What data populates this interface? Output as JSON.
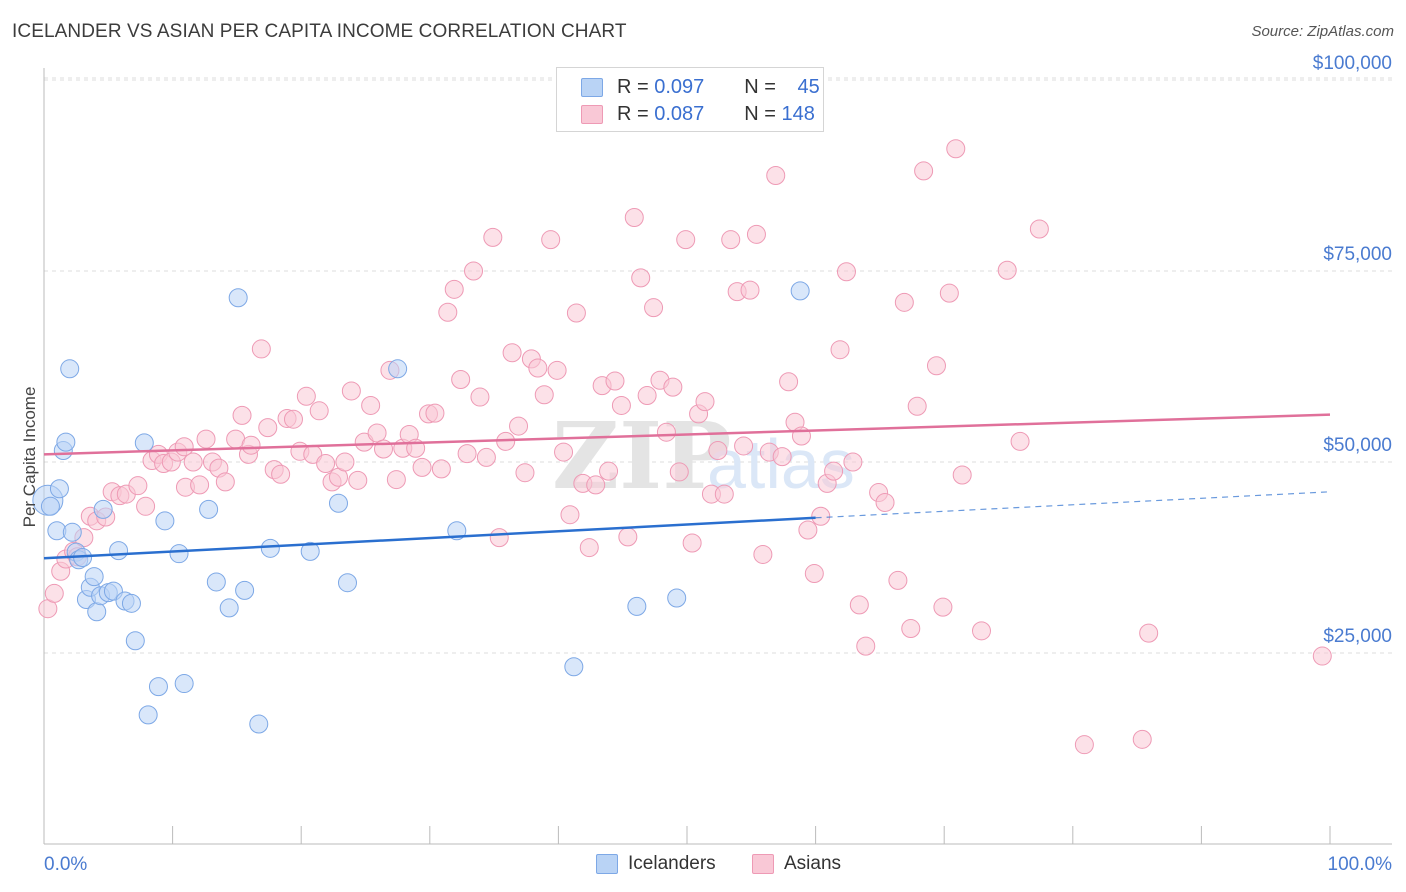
{
  "header": {
    "title": "ICELANDER VS ASIAN PER CAPITA INCOME CORRELATION CHART",
    "source": "Source: ZipAtlas.com"
  },
  "legend": {
    "rows": [
      {
        "r_label": "R = ",
        "r_value": "0.097",
        "n_label": "N = ",
        "n_value": "45"
      },
      {
        "r_label": "R = ",
        "r_value": "0.087",
        "n_label": "N = ",
        "n_value": "148"
      }
    ]
  },
  "bottom_legend": {
    "icelanders": "Icelanders",
    "asians": "Asians"
  },
  "watermark": {
    "zip": "ZIP",
    "atlas": "atlas"
  },
  "chart_data": {
    "type": "scatter",
    "ylabel": "Per Capita Income",
    "y_ticks": [
      {
        "value": 25000,
        "label": "$25,000"
      },
      {
        "value": 50000,
        "label": "$50,000"
      },
      {
        "value": 75000,
        "label": "$75,000"
      },
      {
        "value": 100000,
        "label": "$100,000"
      }
    ],
    "x_ticks": [
      {
        "value": 0,
        "label": "0.0%"
      },
      {
        "value": 100,
        "label": "100.0%"
      }
    ],
    "xlim": [
      0,
      100
    ],
    "ylim": [
      5000,
      105000
    ],
    "grid": true,
    "colors": {
      "icelanders_fill": "#b9d3f5",
      "icelanders_stroke": "#7da8e6",
      "icelanders_line": "#2a6fcf",
      "asians_fill": "#f9c8d6",
      "asians_stroke": "#ee9ab5",
      "asians_line": "#e0709a"
    },
    "series": [
      {
        "name": "Icelanders",
        "trend": {
          "x0": 0,
          "y0": 37400,
          "x1": 60,
          "y1": 42700,
          "dash_x1": 100,
          "dash_y1": 46100
        },
        "points": [
          [
            0.3,
            45000,
            2
          ],
          [
            0.5,
            44200,
            1
          ],
          [
            1.0,
            41000,
            1
          ],
          [
            1.2,
            46500,
            1
          ],
          [
            1.5,
            51500,
            1
          ],
          [
            1.7,
            52600,
            1
          ],
          [
            2.0,
            62200,
            1
          ],
          [
            2.2,
            40800,
            1
          ],
          [
            2.5,
            38200,
            1
          ],
          [
            2.7,
            37200,
            1
          ],
          [
            3.0,
            37500,
            1
          ],
          [
            3.3,
            32000,
            1
          ],
          [
            3.6,
            33600,
            1
          ],
          [
            3.9,
            35000,
            1
          ],
          [
            4.1,
            30400,
            1
          ],
          [
            4.4,
            32500,
            1
          ],
          [
            4.6,
            43800,
            1
          ],
          [
            5.0,
            32900,
            1
          ],
          [
            5.4,
            33100,
            1
          ],
          [
            5.8,
            38400,
            1
          ],
          [
            6.3,
            31800,
            1
          ],
          [
            6.8,
            31500,
            1
          ],
          [
            7.1,
            26600,
            1
          ],
          [
            7.8,
            52500,
            1
          ],
          [
            8.1,
            16900,
            1
          ],
          [
            8.9,
            20600,
            1
          ],
          [
            9.4,
            42300,
            1
          ],
          [
            10.5,
            38000,
            1
          ],
          [
            10.9,
            21000,
            1
          ],
          [
            12.8,
            43800,
            1
          ],
          [
            13.4,
            34300,
            1
          ],
          [
            14.4,
            30900,
            1
          ],
          [
            15.1,
            71500,
            1
          ],
          [
            15.6,
            33200,
            1
          ],
          [
            16.7,
            15700,
            1
          ],
          [
            17.6,
            38700,
            1
          ],
          [
            20.7,
            38300,
            1
          ],
          [
            22.9,
            44600,
            1
          ],
          [
            23.6,
            34200,
            1
          ],
          [
            27.5,
            62200,
            1
          ],
          [
            32.1,
            41000,
            1
          ],
          [
            41.2,
            23200,
            1
          ],
          [
            46.1,
            31100,
            1
          ],
          [
            49.2,
            32200,
            1
          ],
          [
            58.8,
            72400,
            1
          ]
        ]
      },
      {
        "name": "Asians",
        "trend": {
          "x0": 0,
          "y0": 51000,
          "x1": 100,
          "y1": 56200
        },
        "points": [
          [
            0.3,
            30800,
            1
          ],
          [
            0.8,
            32800,
            1
          ],
          [
            1.3,
            35700,
            1
          ],
          [
            1.7,
            37300,
            1
          ],
          [
            2.3,
            38300,
            1
          ],
          [
            2.6,
            37600,
            1
          ],
          [
            3.1,
            40100,
            1
          ],
          [
            3.6,
            42900,
            1
          ],
          [
            4.1,
            42300,
            1
          ],
          [
            4.8,
            42800,
            1
          ],
          [
            5.3,
            46100,
            1
          ],
          [
            5.9,
            45600,
            1
          ],
          [
            6.4,
            45800,
            1
          ],
          [
            7.3,
            46900,
            1
          ],
          [
            7.9,
            44200,
            1
          ],
          [
            8.4,
            50200,
            1
          ],
          [
            8.9,
            51000,
            1
          ],
          [
            9.3,
            49800,
            1
          ],
          [
            9.9,
            50000,
            1
          ],
          [
            10.4,
            51300,
            1
          ],
          [
            10.9,
            52000,
            1
          ],
          [
            11.0,
            46700,
            1
          ],
          [
            11.6,
            50000,
            1
          ],
          [
            12.1,
            47000,
            1
          ],
          [
            12.6,
            53000,
            1
          ],
          [
            13.1,
            50000,
            1
          ],
          [
            13.6,
            49200,
            1
          ],
          [
            14.1,
            47400,
            1
          ],
          [
            14.9,
            53000,
            1
          ],
          [
            15.4,
            56100,
            1
          ],
          [
            15.9,
            51000,
            1
          ],
          [
            16.1,
            52200,
            1
          ],
          [
            16.9,
            64800,
            1
          ],
          [
            17.4,
            54500,
            1
          ],
          [
            17.9,
            49000,
            1
          ],
          [
            18.4,
            48400,
            1
          ],
          [
            18.9,
            55700,
            1
          ],
          [
            19.4,
            55600,
            1
          ],
          [
            19.9,
            51400,
            1
          ],
          [
            20.4,
            58600,
            1
          ],
          [
            20.9,
            51000,
            1
          ],
          [
            21.4,
            56700,
            1
          ],
          [
            21.9,
            49800,
            1
          ],
          [
            22.4,
            47400,
            1
          ],
          [
            22.9,
            48000,
            1
          ],
          [
            23.4,
            50000,
            1
          ],
          [
            23.9,
            59300,
            1
          ],
          [
            24.4,
            47600,
            1
          ],
          [
            24.9,
            52600,
            1
          ],
          [
            25.4,
            57400,
            1
          ],
          [
            25.9,
            53800,
            1
          ],
          [
            26.4,
            51700,
            1
          ],
          [
            26.9,
            62000,
            1
          ],
          [
            27.4,
            47700,
            1
          ],
          [
            27.9,
            51800,
            1
          ],
          [
            28.4,
            53600,
            1
          ],
          [
            28.9,
            51800,
            1
          ],
          [
            29.4,
            49300,
            1
          ],
          [
            29.9,
            56300,
            1
          ],
          [
            30.4,
            56400,
            1
          ],
          [
            30.9,
            49100,
            1
          ],
          [
            31.4,
            69600,
            1
          ],
          [
            31.9,
            72600,
            1
          ],
          [
            32.4,
            60800,
            1
          ],
          [
            32.9,
            51100,
            1
          ],
          [
            33.4,
            75000,
            1
          ],
          [
            33.9,
            58500,
            1
          ],
          [
            34.4,
            50600,
            1
          ],
          [
            34.9,
            79400,
            1
          ],
          [
            35.4,
            40100,
            1
          ],
          [
            35.9,
            52700,
            1
          ],
          [
            36.4,
            64300,
            1
          ],
          [
            36.9,
            54700,
            1
          ],
          [
            37.4,
            48600,
            1
          ],
          [
            37.9,
            63500,
            1
          ],
          [
            38.4,
            62300,
            1
          ],
          [
            38.9,
            58800,
            1
          ],
          [
            39.4,
            79100,
            1
          ],
          [
            39.9,
            62000,
            1
          ],
          [
            40.4,
            51300,
            1
          ],
          [
            40.9,
            43100,
            1
          ],
          [
            41.4,
            69500,
            1
          ],
          [
            41.9,
            47200,
            1
          ],
          [
            42.4,
            38800,
            1
          ],
          [
            42.9,
            47000,
            1
          ],
          [
            43.4,
            60000,
            1
          ],
          [
            43.9,
            48800,
            1
          ],
          [
            44.4,
            60600,
            1
          ],
          [
            44.9,
            57400,
            1
          ],
          [
            45.4,
            40200,
            1
          ],
          [
            45.9,
            82000,
            1
          ],
          [
            46.4,
            74100,
            1
          ],
          [
            46.9,
            58700,
            1
          ],
          [
            47.4,
            70200,
            1
          ],
          [
            47.9,
            60700,
            1
          ],
          [
            48.4,
            53900,
            1
          ],
          [
            48.9,
            59800,
            1
          ],
          [
            49.4,
            48700,
            1
          ],
          [
            49.9,
            79100,
            1
          ],
          [
            50.4,
            39400,
            1
          ],
          [
            50.9,
            56300,
            1
          ],
          [
            51.4,
            57900,
            1
          ],
          [
            51.9,
            45800,
            1
          ],
          [
            52.4,
            51500,
            1
          ],
          [
            52.9,
            45800,
            1
          ],
          [
            53.4,
            79100,
            1
          ],
          [
            53.9,
            72300,
            1
          ],
          [
            54.4,
            52100,
            1
          ],
          [
            54.9,
            72500,
            1
          ],
          [
            55.4,
            79800,
            1
          ],
          [
            55.9,
            37900,
            1
          ],
          [
            56.4,
            51300,
            1
          ],
          [
            56.9,
            87500,
            1
          ],
          [
            57.4,
            50700,
            1
          ],
          [
            57.9,
            60500,
            1
          ],
          [
            58.4,
            55200,
            1
          ],
          [
            58.9,
            53400,
            1
          ],
          [
            59.4,
            41100,
            1
          ],
          [
            59.9,
            35400,
            1
          ],
          [
            60.4,
            42900,
            1
          ],
          [
            60.9,
            47200,
            1
          ],
          [
            61.4,
            48800,
            1
          ],
          [
            61.9,
            64700,
            1
          ],
          [
            62.4,
            74900,
            1
          ],
          [
            62.9,
            50000,
            1
          ],
          [
            63.4,
            31300,
            1
          ],
          [
            63.9,
            25900,
            1
          ],
          [
            64.9,
            46000,
            1
          ],
          [
            65.4,
            44700,
            1
          ],
          [
            66.4,
            34500,
            1
          ],
          [
            66.9,
            70900,
            1
          ],
          [
            67.4,
            28200,
            1
          ],
          [
            67.9,
            57300,
            1
          ],
          [
            68.4,
            88100,
            1
          ],
          [
            69.4,
            62600,
            1
          ],
          [
            69.9,
            31000,
            1
          ],
          [
            70.4,
            72100,
            1
          ],
          [
            70.9,
            91000,
            1
          ],
          [
            71.4,
            48300,
            1
          ],
          [
            72.9,
            27900,
            1
          ],
          [
            74.9,
            75100,
            1
          ],
          [
            75.9,
            52700,
            1
          ],
          [
            77.4,
            80500,
            1
          ],
          [
            80.9,
            13000,
            1
          ],
          [
            85.9,
            27600,
            1
          ],
          [
            85.4,
            13700,
            1
          ],
          [
            99.4,
            24600,
            1
          ]
        ]
      }
    ]
  }
}
